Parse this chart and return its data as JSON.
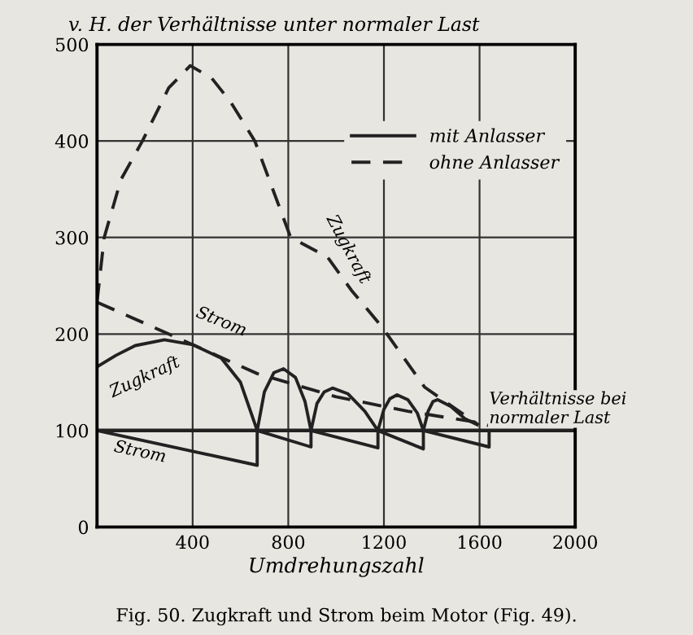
{
  "chart_data": {
    "type": "line",
    "title": "v. H. der Verhältnisse unter normaler Last",
    "xlabel": "Umdrehungszahl",
    "xlim": [
      0,
      2000
    ],
    "ylim": [
      0,
      500
    ],
    "xticks": [
      400,
      800,
      1200,
      1600,
      2000
    ],
    "yticks": [
      0,
      100,
      200,
      300,
      400,
      500
    ],
    "grid": true,
    "legend": "top right",
    "series": [
      {
        "name": "mit Anlasser",
        "color": "#222222",
        "line_style": "solid",
        "x": [
          0,
          80,
          160,
          282,
          400,
          520,
          600,
          670,
          700,
          740,
          780,
          830,
          870,
          895,
          920,
          950,
          985,
          1050,
          1120,
          1175,
          1200,
          1225,
          1255,
          1300,
          1340,
          1365,
          1385,
          1405,
          1425,
          1480,
          1540,
          1590
        ],
        "values": [
          166,
          178,
          188,
          194,
          189,
          175,
          150,
          100,
          140,
          160,
          164,
          155,
          130,
          100,
          128,
          140,
          144,
          138,
          120,
          100,
          122,
          133,
          137,
          132,
          118,
          100,
          120,
          130,
          132,
          125,
          112,
          106
        ]
      },
      {
        "color": "#222222",
        "line_style": "solid",
        "x": [
          0,
          670,
          670,
          895,
          895,
          1175,
          1175,
          1365,
          1365,
          1640,
          1640
        ],
        "values": [
          100,
          64,
          100,
          83,
          100,
          82,
          100,
          81,
          100,
          83,
          100
        ]
      },
      {
        "name": "ohne Anlasser",
        "color": "#222222",
        "line_style": "dashed",
        "x": [
          0,
          30,
          100,
          190,
          300,
          390,
          480,
          560,
          660,
          810,
          963,
          1065,
          1190,
          1370,
          1595
        ],
        "values": [
          233,
          300,
          360,
          400,
          455,
          478,
          465,
          440,
          400,
          300,
          280,
          245,
          208,
          145,
          106
        ]
      },
      {
        "color": "#222222",
        "line_style": "dashed",
        "x": [
          0,
          300,
          670,
          1000,
          1300,
          1600,
          1640
        ],
        "values": [
          233,
          200,
          159,
          135,
          120,
          108,
          105
        ]
      }
    ],
    "ref_lines": [
      {
        "axis": "y",
        "value": 100,
        "label": "Verhältnisse bei normaler Last",
        "color": "#222222"
      }
    ],
    "annotations": [
      "Zugkraft",
      "Strom",
      "Zugkraft",
      "Strom",
      "Fig. 50. Zugkraft und Strom beim Motor (Fig. 49)."
    ]
  }
}
